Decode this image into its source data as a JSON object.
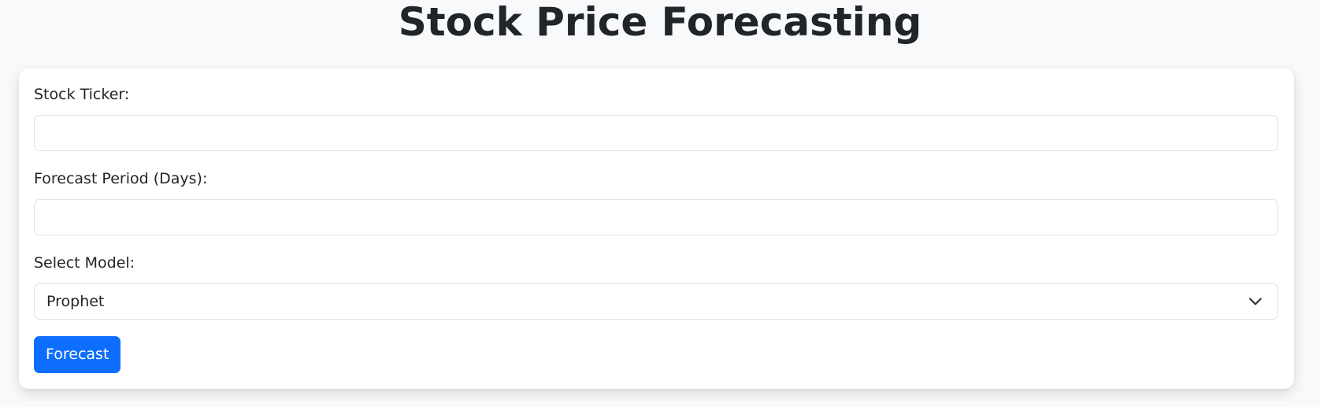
{
  "page": {
    "title": "Stock Price Forecasting"
  },
  "form": {
    "ticker": {
      "label": "Stock Ticker:",
      "value": ""
    },
    "period": {
      "label": "Forecast Period (Days):",
      "value": ""
    },
    "model": {
      "label": "Select Model:",
      "selected": "Prophet",
      "icon": "chevron-down-icon"
    },
    "submit_label": "Forecast"
  },
  "colors": {
    "primary": "#0d6efd",
    "background": "#f8f9fa",
    "card": "#ffffff",
    "border": "#dee2e6",
    "text": "#212529"
  }
}
